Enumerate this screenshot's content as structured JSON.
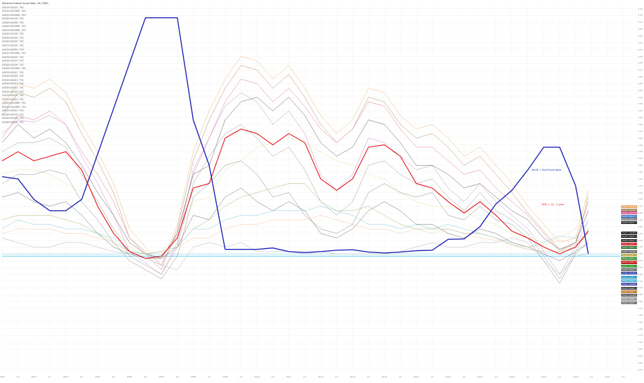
{
  "chart_data": {
    "type": "line",
    "title": "Effective Federal Funds Rate, 1M, FRED",
    "legend_entries": [
      "US10Y-US02Y, TVC",
      "US10Y-US03MY, TVC",
      "US02Y-US03MY, TVC",
      "US30Y-US10Y, TVC",
      "US30Y-US05Y, TVC",
      "US05Y-US03MY, TVC",
      "US07Y-US03MY, TVC",
      "US20Y-US10Y, TVC",
      "US05Y-US02Y, TVC",
      "US30Y-US02Y, TVC",
      "US07Y-US02Y, TVC",
      "US10Y-US05Y, TVC",
      "US01Y-US03MY, TVC",
      "US03Y-US02Y, TVC",
      "US10Y-US07Y, TVC",
      "US30Y-US20Y, TVC",
      "US03Y-US03MY, TVC",
      "US03Y-US01Y, TVC",
      "US20Y-US05Y, TVC",
      "US10Y-US01Y, TVC",
      "US05Y-US01Y, TVC",
      "US30Y-US01Y, TVC",
      "US20Y-US02Y, TVC",
      "US10Y-US03Y, TVC",
      "US07Y-US01Y, TVC",
      "US30Y-US03MY, TVC",
      "US20Y-US03MY, TVC",
      "US02Y-US01Y, TVC",
      "US30Y-US07Y, TVC",
      "US20Y-US03Y, TVC",
      "US30Y-US03Y, TVC"
    ],
    "annotations": {
      "blue": "BLUE  =  Fed Funds Rate",
      "red": "RED  =  10 - 2 year"
    },
    "x_labels": [
      "2002",
      "Jul",
      "2003",
      "Jul",
      "2004",
      "Jul",
      "2005",
      "Jul",
      "2006",
      "Jul",
      "2007",
      "Jul",
      "2008",
      "Jul",
      "2009",
      "Jul",
      "2010",
      "Jul",
      "2011",
      "Jul",
      "2012",
      "Jul",
      "2013",
      "Jul",
      "2014",
      "Jul",
      "2015",
      "Jul",
      "2016",
      "Jul",
      "2017",
      "Jul",
      "2018",
      "Jul",
      "2019",
      "Jul",
      "2020",
      "Jul",
      "2021",
      "Jul"
    ],
    "y_ticks": [
      "5.45",
      "5.30",
      "5.15",
      "5.00",
      "4.85",
      "4.70",
      "4.55",
      "4.40",
      "4.25",
      "4.10",
      "3.95",
      "3.80",
      "3.65",
      "3.50",
      "3.35",
      "3.20",
      "3.05",
      "2.90",
      "2.75",
      "2.60",
      "2.45",
      "2.30",
      "2.15",
      "2.00",
      "1.85",
      "1.70",
      "1.55",
      "1.40",
      "1.25",
      "1.10",
      "0.95",
      "0.80",
      "0.65",
      "0.50",
      "0.35",
      "0.20",
      "0.05",
      "-0.10",
      "-0.25",
      "-0.40",
      "-0.55",
      "-0.70",
      "-0.85",
      "-1.00",
      "-1.15",
      "-1.30",
      "-1.45",
      "-1.60",
      "-1.75",
      "-1.90",
      "-2.05",
      "-2.20",
      "-2.35",
      "-2.50"
    ],
    "ylim": [
      -2.55,
      5.55
    ],
    "xlim": [
      2002.0,
      2021.8
    ],
    "x": [
      2002.0,
      2002.5,
      2003.0,
      2003.5,
      2004.0,
      2004.5,
      2005.0,
      2005.5,
      2006.0,
      2006.5,
      2007.0,
      2007.5,
      2008.0,
      2008.5,
      2009.0,
      2009.5,
      2010.0,
      2010.5,
      2011.0,
      2011.5,
      2012.0,
      2012.5,
      2013.0,
      2013.5,
      2014.0,
      2014.5,
      2015.0,
      2015.5,
      2016.0,
      2016.5,
      2017.0,
      2017.5,
      2018.0,
      2018.5,
      2019.0,
      2019.5,
      2020.0,
      2020.4
    ],
    "series": [
      {
        "name": "Effective Federal Funds Rate",
        "color": "#1e22b4",
        "width": 1.4,
        "values": [
          1.75,
          1.7,
          1.25,
          1.0,
          1.0,
          1.25,
          2.25,
          3.25,
          4.25,
          5.25,
          5.25,
          5.25,
          3.0,
          2.0,
          0.15,
          0.15,
          0.15,
          0.18,
          0.1,
          0.08,
          0.1,
          0.13,
          0.14,
          0.09,
          0.07,
          0.09,
          0.12,
          0.13,
          0.37,
          0.38,
          0.65,
          1.15,
          1.45,
          1.9,
          2.4,
          2.4,
          1.55,
          0.05
        ]
      },
      {
        "name": "US10Y-US02Y",
        "color": "#e0121a",
        "width": 1.1,
        "values": [
          2.1,
          2.3,
          2.1,
          2.2,
          2.3,
          1.9,
          1.1,
          0.5,
          0.1,
          -0.05,
          0.0,
          0.4,
          1.5,
          1.6,
          2.6,
          2.8,
          2.7,
          2.45,
          2.7,
          2.5,
          1.7,
          1.45,
          1.7,
          2.4,
          2.45,
          2.2,
          1.6,
          1.5,
          1.2,
          0.95,
          1.2,
          0.9,
          0.55,
          0.4,
          0.2,
          0.05,
          0.2,
          0.55
        ]
      },
      {
        "name": "US30Y-US03MY",
        "color": "#e8b87a",
        "width": 0.5,
        "values": [
          3.3,
          3.8,
          3.7,
          3.9,
          3.6,
          2.9,
          2.3,
          1.6,
          0.6,
          0.2,
          -0.2,
          0.7,
          2.3,
          3.2,
          3.9,
          4.4,
          4.3,
          3.9,
          4.2,
          3.7,
          3.1,
          2.7,
          3.0,
          3.7,
          3.6,
          3.1,
          2.8,
          2.9,
          2.6,
          2.2,
          2.4,
          2.0,
          1.6,
          1.1,
          0.7,
          0.3,
          0.4,
          1.45
        ]
      },
      {
        "name": "US20Y-US03MY",
        "color": "#b08a6a",
        "width": 0.5,
        "values": [
          3.1,
          3.6,
          3.5,
          3.7,
          3.4,
          2.7,
          2.1,
          1.4,
          0.4,
          0.05,
          -0.3,
          0.6,
          2.1,
          3.0,
          3.7,
          4.2,
          4.1,
          3.7,
          4.0,
          3.5,
          2.9,
          2.5,
          2.8,
          3.5,
          3.4,
          2.9,
          2.6,
          2.7,
          2.4,
          2.0,
          2.2,
          1.8,
          1.4,
          0.95,
          0.55,
          0.15,
          0.25,
          1.3
        ]
      },
      {
        "name": "US10Y-US03MY",
        "color": "#c889d8",
        "width": 0.5,
        "values": [
          2.7,
          3.0,
          2.95,
          3.1,
          2.9,
          2.2,
          1.6,
          0.9,
          0.1,
          -0.15,
          -0.4,
          0.3,
          1.9,
          2.6,
          3.3,
          3.6,
          3.4,
          2.9,
          3.2,
          2.7,
          1.8,
          1.45,
          1.8,
          2.6,
          2.5,
          2.2,
          1.9,
          2.0,
          1.5,
          1.2,
          1.6,
          1.2,
          0.9,
          0.6,
          0.1,
          -0.4,
          0.2,
          0.8
        ]
      },
      {
        "name": "US30Y-US01Y",
        "color": "#e07a9a",
        "width": 0.5,
        "values": [
          2.6,
          3.1,
          3.0,
          3.2,
          2.9,
          2.3,
          1.8,
          1.2,
          0.4,
          0.1,
          -0.2,
          0.5,
          1.8,
          2.6,
          3.4,
          3.9,
          3.8,
          3.4,
          3.7,
          3.3,
          2.8,
          2.5,
          2.8,
          3.4,
          3.3,
          2.8,
          2.4,
          2.4,
          2.1,
          1.8,
          1.9,
          1.5,
          1.2,
          0.9,
          0.5,
          0.1,
          0.3,
          1.2
        ]
      },
      {
        "name": "US30Y-US02Y",
        "color": "#5a5a5a",
        "width": 0.5,
        "values": [
          2.5,
          2.9,
          2.6,
          2.8,
          2.5,
          2.0,
          1.4,
          0.9,
          0.3,
          0.05,
          -0.05,
          0.5,
          1.8,
          2.0,
          3.0,
          3.4,
          3.5,
          3.2,
          3.5,
          3.1,
          2.5,
          2.2,
          2.4,
          3.0,
          2.9,
          2.5,
          2.0,
          2.0,
          1.8,
          1.5,
          1.6,
          1.3,
          1.0,
          0.8,
          0.4,
          0.15,
          0.3,
          1.0
        ]
      },
      {
        "name": "US07Y-US03MY",
        "color": "#9a9a9a",
        "width": 0.5,
        "values": [
          2.3,
          2.5,
          2.5,
          2.6,
          2.4,
          1.8,
          1.2,
          0.6,
          0.0,
          -0.2,
          -0.4,
          0.2,
          1.6,
          2.2,
          2.7,
          2.9,
          2.6,
          2.2,
          2.4,
          1.9,
          1.2,
          0.9,
          1.2,
          2.0,
          2.1,
          1.8,
          1.6,
          1.7,
          1.3,
          1.0,
          1.4,
          1.0,
          0.8,
          0.5,
          0.0,
          -0.5,
          0.1,
          0.6
        ]
      },
      {
        "name": "US20Y-US05Y",
        "color": "#e8e3a0",
        "width": 0.5,
        "values": [
          1.8,
          1.9,
          1.9,
          1.8,
          1.6,
          1.4,
          1.0,
          0.6,
          0.2,
          0.05,
          0.1,
          0.4,
          1.2,
          1.3,
          1.9,
          2.1,
          2.4,
          2.5,
          2.6,
          2.5,
          2.3,
          2.1,
          2.0,
          1.8,
          1.7,
          1.4,
          1.2,
          1.1,
          1.1,
          1.0,
          0.8,
          0.7,
          0.5,
          0.4,
          0.3,
          0.4,
          0.6,
          1.35
        ]
      },
      {
        "name": "US05Y-US03MY",
        "color": "#8a8a8a",
        "width": 0.5,
        "values": [
          1.6,
          1.8,
          1.8,
          1.9,
          1.8,
          1.2,
          0.8,
          0.3,
          -0.1,
          -0.3,
          -0.5,
          0.0,
          1.3,
          1.6,
          2.0,
          2.1,
          1.8,
          1.3,
          1.4,
          0.9,
          0.6,
          0.5,
          0.7,
          1.4,
          1.6,
          1.4,
          1.3,
          1.4,
          0.9,
          0.8,
          1.1,
          0.8,
          0.7,
          0.4,
          -0.1,
          -0.6,
          0.05,
          0.3
        ]
      },
      {
        "name": "US30Y-US10Y",
        "color": "#86c8d8",
        "width": 0.5,
        "values": [
          0.6,
          0.8,
          0.7,
          0.7,
          0.6,
          0.6,
          0.5,
          0.4,
          0.1,
          0.05,
          0.1,
          0.2,
          0.6,
          0.6,
          0.8,
          0.9,
          0.9,
          1.0,
          1.0,
          1.0,
          1.1,
          1.0,
          0.9,
          0.7,
          0.7,
          0.6,
          0.7,
          0.6,
          0.7,
          0.6,
          0.5,
          0.4,
          0.3,
          0.2,
          0.3,
          0.45,
          0.4,
          0.75
        ]
      },
      {
        "name": "US05Y-US02Y",
        "color": "#6a6a6a",
        "width": 0.5,
        "values": [
          1.3,
          1.4,
          1.2,
          1.1,
          1.2,
          0.9,
          0.5,
          0.2,
          0.05,
          -0.05,
          -0.05,
          0.2,
          0.9,
          0.8,
          1.3,
          1.5,
          1.2,
          1.0,
          1.2,
          1.0,
          0.5,
          0.4,
          0.6,
          1.0,
          1.2,
          1.0,
          0.7,
          0.7,
          0.5,
          0.4,
          0.6,
          0.5,
          0.3,
          0.2,
          0.05,
          -0.1,
          0.1,
          0.3
        ]
      },
      {
        "name": "US20Y-US10Y",
        "color": "#f4c6a8",
        "width": 0.5,
        "values": [
          0.5,
          0.6,
          0.6,
          0.6,
          0.5,
          0.5,
          0.4,
          0.3,
          0.1,
          0.05,
          0.1,
          0.2,
          0.4,
          0.4,
          0.6,
          0.7,
          0.7,
          0.8,
          0.8,
          0.8,
          0.9,
          0.8,
          0.7,
          0.6,
          0.6,
          0.5,
          0.6,
          0.5,
          0.6,
          0.5,
          0.4,
          0.35,
          0.25,
          0.2,
          0.25,
          0.35,
          0.3,
          0.55
        ]
      },
      {
        "name": "US01Y-US03MY",
        "color": "#b4b4b4",
        "width": 0.5,
        "values": [
          0.4,
          0.3,
          0.2,
          0.2,
          0.3,
          0.3,
          0.2,
          0.1,
          0.05,
          -0.05,
          -0.2,
          -0.3,
          0.2,
          0.3,
          0.2,
          0.3,
          0.1,
          0.1,
          0.1,
          0.05,
          0.1,
          0.05,
          0.05,
          0.05,
          0.05,
          0.1,
          0.2,
          0.3,
          0.2,
          0.2,
          0.3,
          0.3,
          0.4,
          0.3,
          -0.1,
          -0.4,
          0.0,
          0.05
        ]
      },
      {
        "name": "US10Y-US05Y",
        "color": "#a8b878",
        "width": 0.5,
        "values": [
          0.8,
          0.9,
          0.9,
          0.9,
          0.8,
          0.7,
          0.5,
          0.3,
          0.1,
          0.05,
          0.1,
          0.2,
          0.6,
          0.8,
          1.1,
          1.3,
          1.4,
          1.5,
          1.6,
          1.6,
          1.2,
          1.0,
          1.0,
          1.1,
          0.9,
          0.7,
          0.6,
          0.6,
          0.6,
          0.5,
          0.5,
          0.4,
          0.25,
          0.15,
          0.1,
          0.1,
          0.2,
          0.5
        ]
      }
    ],
    "badges": [
      {
        "label": "US10Y-US03MY",
        "value": "1.45",
        "color": "#e8a15a"
      },
      {
        "label": "US30Y-US03MY",
        "value": "1.35",
        "color": "#9a7a5a"
      },
      {
        "label": "US20Y-US03MY",
        "value": "1.30",
        "color": "#d8508a"
      },
      {
        "label": "US30Y-US01Y",
        "value": "1.25",
        "color": "#3a78c8"
      },
      {
        "label": "US10Y-US01Y",
        "value": "1.18",
        "color": "#7a7a7a"
      },
      {
        "label": "US20Y-US01Y",
        "value": "1.08",
        "color": "#222222"
      },
      {
        "label": "US07Y-US03MY",
        "value": "0.75",
        "color": "#111111"
      },
      {
        "label": "US30Y-US02Y",
        "value": "0.55",
        "color": "#111111"
      },
      {
        "label": "US20Y-US02Y",
        "value": "0.50",
        "color": "#1a1a1a"
      },
      {
        "label": "US10Y-US02Y",
        "value": "0.46",
        "color": "#cc1a1a"
      },
      {
        "label": "US07Y-US01Y",
        "value": "0.40",
        "color": "#2a6a2a"
      },
      {
        "label": "US05Y-US03MY",
        "value": "0.35",
        "color": "#5a5a5a"
      },
      {
        "label": "US30Y-US05Y",
        "value": "0.30",
        "color": "#b8a040"
      },
      {
        "label": "US10Y-US07Y",
        "value": "0.20",
        "color": "#2a8a2a"
      },
      {
        "label": "US20Y-US05Y",
        "value": "0.17",
        "color": "#c02020"
      },
      {
        "label": "US05Y-US01Y",
        "value": "0.15",
        "color": "#208a20"
      },
      {
        "label": "US30Y-US10Y",
        "value": "0.09",
        "color": "#606060"
      },
      {
        "label": "US03Y-US03MY",
        "value": "0.06",
        "color": "#2a3aa0"
      },
      {
        "label": "US10Y-US05Y",
        "value": "0.04",
        "color": "#2090c0"
      },
      {
        "label": "US05Y-US02Y",
        "value": "0.03",
        "color": "#40b0d0"
      },
      {
        "label": "US01Y-US03MY",
        "value": "0.01",
        "color": "#4040a0"
      },
      {
        "label": "US20Y-US10Y",
        "value": "-0.01",
        "color": "#3a3a3a"
      },
      {
        "label": "US30Y-US20Y",
        "value": "-0.03",
        "color": "#c07020"
      },
      {
        "label": "US02Y-US03MY",
        "value": "-0.05",
        "color": "#505050"
      },
      {
        "label": "US03Y-US02Y",
        "value": "-0.07",
        "color": "#9a9a9a"
      },
      {
        "label": "US02Y-US01Y",
        "value": "-0.10",
        "color": "#707070"
      }
    ]
  }
}
